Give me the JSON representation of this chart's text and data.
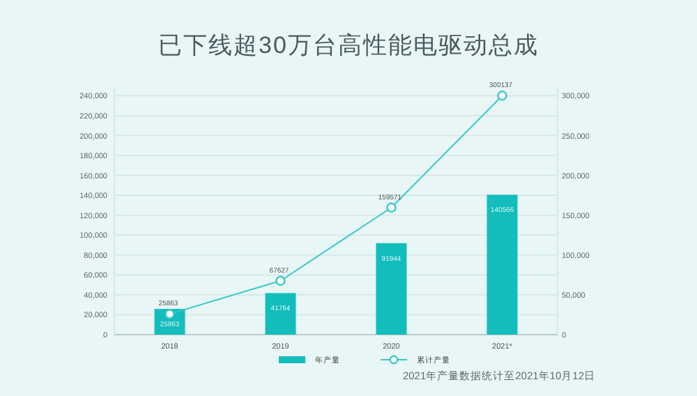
{
  "chart_data": {
    "type": "bar",
    "title": "已下线超30万台高性能电驱动总成",
    "categories": [
      "2018",
      "2019",
      "2020",
      "2021*"
    ],
    "series": [
      {
        "name": "年产量",
        "color": "#13bdbb",
        "values": [
          25863,
          41764,
          91944,
          140566
        ]
      },
      {
        "name": "累计产量",
        "type": "line",
        "axis": "y2",
        "color": "#3ac7cc",
        "values": [
          25863,
          67627,
          159571,
          300137
        ]
      }
    ],
    "ylim": [
      0,
      248000
    ],
    "yticks": [
      {
        "value": 0,
        "label": "0"
      },
      {
        "value": 20000,
        "label": "20,000"
      },
      {
        "value": 40000,
        "label": "40,000"
      },
      {
        "value": 60000,
        "label": "60,000"
      },
      {
        "value": 80000,
        "label": "80,000"
      },
      {
        "value": 100000,
        "label": "100,000"
      },
      {
        "value": 120000,
        "label": "120,000"
      },
      {
        "value": 140000,
        "label": "140,000"
      },
      {
        "value": 160000,
        "label": "160,000"
      },
      {
        "value": 180000,
        "label": "180,000"
      },
      {
        "value": 200000,
        "label": "200,000"
      },
      {
        "value": 220000,
        "label": "220,000"
      },
      {
        "value": 240000,
        "label": "240,000"
      }
    ],
    "y2lim": [
      0,
      310000
    ],
    "y2ticks": [
      {
        "value": 0,
        "label": "0"
      },
      {
        "value": 50000,
        "label": "50,000"
      },
      {
        "value": 100000,
        "label": "100,000"
      },
      {
        "value": 150000,
        "label": "150,000"
      },
      {
        "value": 200000,
        "label": "200,000"
      },
      {
        "value": 250000,
        "label": "250,000"
      },
      {
        "value": 300000,
        "label": "300,000"
      }
    ],
    "grid": "y",
    "legend": "bottom",
    "marker": "circle",
    "data_labels": true,
    "annotations": [
      "2021年产量数据统计至2021年10月12日"
    ]
  }
}
